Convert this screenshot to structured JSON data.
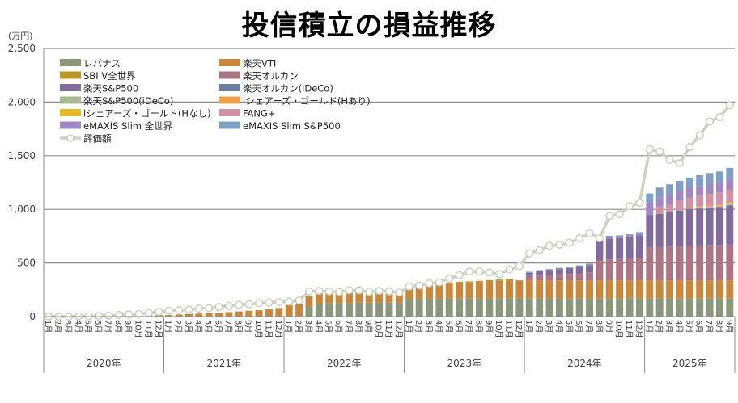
{
  "chart_data": {
    "type": "bar",
    "stacked": true,
    "title": "投信積立の損益推移",
    "ylabel": "(万円)",
    "xlabel": "",
    "ylim": [
      0,
      2500
    ],
    "yticks": [
      0,
      500,
      1000,
      1500,
      2000,
      2500
    ],
    "ytick_labels": [
      "0",
      "500",
      "1,000",
      "1,500",
      "2,000",
      "2,500"
    ],
    "grid": true,
    "legend_position": "top-left",
    "month_suffix": "月",
    "years": [
      {
        "label": "2020年",
        "months": [
          1,
          2,
          3,
          4,
          5,
          6,
          7,
          8,
          9,
          10,
          11,
          12
        ]
      },
      {
        "label": "2021年",
        "months": [
          1,
          2,
          3,
          4,
          5,
          6,
          7,
          8,
          9,
          10,
          11,
          12
        ]
      },
      {
        "label": "2022年",
        "months": [
          1,
          2,
          3,
          4,
          5,
          6,
          7,
          8,
          9,
          10,
          11,
          12
        ]
      },
      {
        "label": "2023年",
        "months": [
          1,
          2,
          3,
          4,
          5,
          6,
          7,
          8,
          9,
          10,
          11,
          12
        ]
      },
      {
        "label": "2024年",
        "months": [
          1,
          2,
          3,
          4,
          5,
          6,
          7,
          8,
          9,
          10,
          11,
          12
        ]
      },
      {
        "label": "2025年",
        "months": [
          1,
          2,
          3,
          4,
          5,
          6,
          7,
          8,
          9
        ]
      }
    ],
    "series": [
      {
        "name": "レバナス",
        "color": "#8a977a",
        "values": [
          0,
          0,
          0,
          0,
          0,
          0,
          0,
          0,
          0,
          0,
          0,
          0,
          0,
          0,
          0,
          0,
          0,
          0,
          0,
          0,
          0,
          0,
          0,
          0,
          3,
          5,
          90,
          120,
          125,
          125,
          125,
          130,
          130,
          130,
          130,
          130,
          165,
          165,
          165,
          165,
          168,
          168,
          168,
          168,
          168,
          168,
          168,
          168,
          168,
          168,
          168,
          168,
          168,
          168,
          168,
          168,
          168,
          168,
          168,
          168,
          168,
          168,
          168,
          168,
          168,
          168,
          168,
          168,
          168
        ]
      },
      {
        "name": "楽天VTI",
        "color": "#c9873c",
        "values": [
          0,
          0,
          0,
          0,
          0,
          0,
          0,
          3,
          5,
          8,
          10,
          13,
          15,
          20,
          25,
          28,
          32,
          36,
          42,
          48,
          55,
          60,
          70,
          80,
          105,
          110,
          100,
          100,
          100,
          100,
          100,
          100,
          100,
          100,
          100,
          100,
          100,
          110,
          125,
          130,
          140,
          145,
          150,
          155,
          160,
          165,
          170,
          170,
          170,
          170,
          170,
          170,
          170,
          170,
          170,
          170,
          170,
          170,
          170,
          170,
          170,
          170,
          170,
          170,
          170,
          170,
          170,
          170,
          170
        ]
      },
      {
        "name": "SBI V全世界",
        "color": "#b8962a",
        "values": [
          0,
          0,
          0,
          0,
          0,
          0,
          0,
          0,
          0,
          0,
          0,
          0,
          0,
          0,
          0,
          0,
          0,
          0,
          0,
          0,
          0,
          0,
          0,
          0,
          0,
          0,
          0,
          0,
          0,
          0,
          0,
          0,
          0,
          0,
          0,
          0,
          0,
          0,
          0,
          0,
          8,
          10,
          10,
          10,
          12,
          12,
          14,
          0,
          0,
          0,
          0,
          0,
          0,
          0,
          0,
          0,
          0,
          0,
          0,
          0,
          0,
          0,
          0,
          0,
          0,
          0,
          0,
          0,
          0
        ]
      },
      {
        "name": "楽天オルカン",
        "color": "#ac7585",
        "values": [
          0,
          0,
          0,
          0,
          0,
          0,
          0,
          0,
          0,
          0,
          0,
          0,
          0,
          0,
          0,
          0,
          0,
          0,
          0,
          0,
          0,
          0,
          0,
          0,
          0,
          0,
          0,
          0,
          0,
          0,
          0,
          0,
          0,
          0,
          0,
          0,
          0,
          0,
          0,
          0,
          0,
          0,
          0,
          0,
          0,
          0,
          0,
          0,
          40,
          45,
          50,
          55,
          60,
          65,
          75,
          185,
          195,
          200,
          200,
          210,
          310,
          310,
          315,
          320,
          322,
          325,
          330,
          330,
          335
        ]
      },
      {
        "name": "楽天S&P500",
        "color": "#806b9c",
        "values": [
          0,
          0,
          0,
          0,
          0,
          0,
          0,
          0,
          0,
          0,
          0,
          0,
          0,
          0,
          0,
          0,
          0,
          0,
          0,
          0,
          0,
          0,
          0,
          0,
          0,
          0,
          0,
          0,
          0,
          0,
          0,
          0,
          0,
          0,
          0,
          0,
          0,
          0,
          0,
          0,
          0,
          0,
          0,
          0,
          0,
          0,
          0,
          0,
          30,
          40,
          45,
          50,
          55,
          60,
          65,
          200,
          195,
          195,
          205,
          210,
          300,
          310,
          320,
          330,
          340,
          345,
          345,
          350,
          360
        ]
      },
      {
        "name": "楽天オルカン(iDeCo)",
        "color": "#6a7fa0",
        "values": [
          0,
          0,
          0,
          0,
          0,
          0,
          0,
          0,
          0,
          0,
          0,
          0,
          0,
          0,
          0,
          0,
          0,
          0,
          0,
          0,
          0,
          0,
          0,
          0,
          0,
          0,
          0,
          0,
          0,
          0,
          0,
          0,
          0,
          0,
          0,
          0,
          0,
          0,
          0,
          0,
          0,
          0,
          0,
          0,
          0,
          0,
          0,
          0,
          0,
          0,
          0,
          0,
          0,
          0,
          0,
          0,
          0,
          0,
          0,
          0,
          0,
          0,
          0,
          3,
          5,
          5,
          5,
          6,
          8
        ]
      },
      {
        "name": "楽天S&P500(iDeCo)",
        "color": "#a8b894",
        "values": [
          0,
          0,
          0,
          0,
          0,
          0,
          0,
          0,
          0,
          0,
          0,
          0,
          0,
          0,
          0,
          0,
          0,
          0,
          0,
          0,
          0,
          0,
          0,
          0,
          0,
          0,
          0,
          0,
          0,
          0,
          0,
          0,
          0,
          0,
          0,
          0,
          0,
          0,
          0,
          0,
          0,
          0,
          0,
          0,
          0,
          0,
          0,
          0,
          0,
          0,
          0,
          0,
          0,
          0,
          0,
          0,
          0,
          0,
          0,
          0,
          0,
          0,
          0,
          0,
          3,
          4,
          4,
          5,
          5
        ]
      },
      {
        "name": "iシェアーズ・ゴールド(Hあり)",
        "color": "#f0a046",
        "values": [
          0,
          0,
          0,
          0,
          0,
          0,
          0,
          0,
          0,
          0,
          0,
          0,
          0,
          0,
          0,
          0,
          0,
          0,
          0,
          0,
          0,
          0,
          0,
          0,
          0,
          0,
          0,
          0,
          0,
          0,
          0,
          0,
          0,
          0,
          0,
          0,
          0,
          0,
          0,
          0,
          0,
          0,
          0,
          0,
          0,
          0,
          0,
          0,
          0,
          0,
          0,
          0,
          0,
          0,
          0,
          0,
          0,
          0,
          0,
          0,
          0,
          0,
          0,
          0,
          5,
          5,
          6,
          8,
          10
        ]
      },
      {
        "name": "iシェアーズ・ゴールド(Hなし)",
        "color": "#e6b82a",
        "values": [
          0,
          0,
          0,
          0,
          0,
          0,
          0,
          0,
          0,
          0,
          0,
          0,
          0,
          0,
          0,
          0,
          0,
          0,
          0,
          0,
          0,
          0,
          0,
          0,
          0,
          0,
          0,
          0,
          0,
          0,
          0,
          0,
          0,
          0,
          0,
          0,
          0,
          0,
          0,
          0,
          0,
          0,
          0,
          0,
          0,
          0,
          0,
          0,
          0,
          0,
          0,
          0,
          0,
          0,
          0,
          0,
          0,
          0,
          0,
          0,
          0,
          0,
          0,
          0,
          3,
          5,
          5,
          6,
          6
        ]
      },
      {
        "name": "FANG+",
        "color": "#d190a6",
        "values": [
          0,
          0,
          0,
          0,
          0,
          0,
          0,
          0,
          0,
          0,
          0,
          0,
          0,
          0,
          0,
          0,
          0,
          0,
          0,
          0,
          0,
          0,
          0,
          0,
          0,
          0,
          0,
          0,
          0,
          0,
          0,
          0,
          0,
          0,
          0,
          0,
          0,
          0,
          0,
          0,
          0,
          0,
          0,
          0,
          0,
          0,
          0,
          0,
          0,
          0,
          0,
          0,
          0,
          0,
          0,
          0,
          0,
          0,
          0,
          0,
          0,
          70,
          80,
          90,
          95,
          100,
          110,
          115,
          120
        ]
      },
      {
        "name": "eMAXIS Slim 全世界",
        "color": "#a186c4",
        "values": [
          0,
          0,
          0,
          0,
          0,
          0,
          0,
          0,
          0,
          0,
          0,
          0,
          0,
          0,
          0,
          0,
          0,
          0,
          0,
          0,
          0,
          0,
          0,
          0,
          0,
          0,
          0,
          0,
          0,
          0,
          0,
          0,
          0,
          0,
          0,
          0,
          0,
          0,
          0,
          0,
          0,
          0,
          0,
          0,
          0,
          0,
          0,
          0,
          0,
          0,
          0,
          0,
          0,
          0,
          0,
          0,
          10,
          10,
          10,
          10,
          110,
          80,
          85,
          90,
          90,
          90,
          95,
          95,
          100
        ]
      },
      {
        "name": "eMAXIS Slim S&P500",
        "color": "#7f9ec6",
        "values": [
          0,
          0,
          0,
          0,
          0,
          0,
          0,
          0,
          0,
          0,
          0,
          0,
          0,
          0,
          0,
          0,
          0,
          0,
          0,
          0,
          0,
          0,
          0,
          0,
          0,
          0,
          0,
          0,
          0,
          0,
          0,
          0,
          0,
          0,
          0,
          0,
          0,
          0,
          0,
          0,
          0,
          0,
          0,
          0,
          0,
          0,
          0,
          0,
          10,
          10,
          10,
          12,
          12,
          15,
          15,
          15,
          15,
          15,
          15,
          20,
          90,
          95,
          95,
          95,
          95,
          100,
          100,
          100,
          105
        ]
      }
    ],
    "line_series": {
      "name": "評価額",
      "color": "#c8d2c0",
      "values": [
        0,
        0,
        0,
        2,
        4,
        5,
        8,
        15,
        20,
        25,
        35,
        45,
        55,
        60,
        65,
        75,
        80,
        90,
        100,
        110,
        115,
        125,
        130,
        135,
        140,
        150,
        235,
        240,
        235,
        230,
        245,
        245,
        230,
        240,
        235,
        225,
        280,
        290,
        310,
        320,
        355,
        385,
        420,
        420,
        410,
        395,
        440,
        470,
        590,
        620,
        660,
        670,
        690,
        730,
        775,
        730,
        940,
        955,
        1030,
        1060,
        1560,
        1540,
        1460,
        1430,
        1580,
        1690,
        1820,
        1860,
        1970
      ]
    },
    "legend": [
      {
        "name": "レバナス",
        "color": "#8a977a",
        "kind": "bar"
      },
      {
        "name": "楽天VTI",
        "color": "#c9873c",
        "kind": "bar"
      },
      {
        "name": "SBI V全世界",
        "color": "#b8962a",
        "kind": "bar"
      },
      {
        "name": "楽天オルカン",
        "color": "#ac7585",
        "kind": "bar"
      },
      {
        "name": "楽天S&P500",
        "color": "#806b9c",
        "kind": "bar"
      },
      {
        "name": "楽天オルカン(iDeCo)",
        "color": "#6a7fa0",
        "kind": "bar"
      },
      {
        "name": "楽天S&P500(iDeCo)",
        "color": "#a8b894",
        "kind": "bar"
      },
      {
        "name": "iシェアーズ・ゴールド(Hあり)",
        "color": "#f0a046",
        "kind": "bar"
      },
      {
        "name": "iシェアーズ・ゴールド(Hなし)",
        "color": "#e6b82a",
        "kind": "bar"
      },
      {
        "name": "FANG+",
        "color": "#d190a6",
        "kind": "bar"
      },
      {
        "name": "eMAXIS Slim 全世界",
        "color": "#a186c4",
        "kind": "bar"
      },
      {
        "name": "eMAXIS Slim S&P500",
        "color": "#7f9ec6",
        "kind": "bar"
      },
      {
        "name": "評価額",
        "color": "#c8d2c0",
        "kind": "line"
      }
    ]
  }
}
